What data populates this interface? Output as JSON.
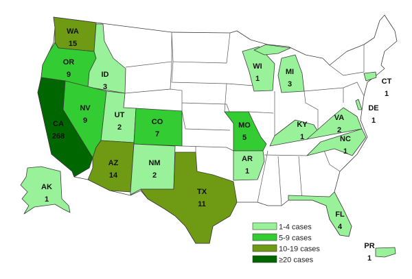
{
  "map": {
    "type": "choropleth",
    "region": "United States",
    "colors": {
      "none": "#ffffff",
      "1-4": "#99f299",
      "5-9": "#33cc33",
      "10-19": "#6f9a14",
      "20+": "#006600"
    },
    "states": [
      {
        "abbr": "WA",
        "cases": "15",
        "bin": "10-19"
      },
      {
        "abbr": "OR",
        "cases": "9",
        "bin": "5-9"
      },
      {
        "abbr": "ID",
        "cases": "3",
        "bin": "1-4"
      },
      {
        "abbr": "CA",
        "cases": "268",
        "bin": "20+"
      },
      {
        "abbr": "NV",
        "cases": "9",
        "bin": "5-9"
      },
      {
        "abbr": "UT",
        "cases": "2",
        "bin": "1-4"
      },
      {
        "abbr": "CO",
        "cases": "7",
        "bin": "5-9"
      },
      {
        "abbr": "AZ",
        "cases": "14",
        "bin": "10-19"
      },
      {
        "abbr": "NM",
        "cases": "2",
        "bin": "1-4"
      },
      {
        "abbr": "TX",
        "cases": "11",
        "bin": "10-19"
      },
      {
        "abbr": "AK",
        "cases": "1",
        "bin": "1-4"
      },
      {
        "abbr": "MO",
        "cases": "5",
        "bin": "5-9"
      },
      {
        "abbr": "AR",
        "cases": "1",
        "bin": "1-4"
      },
      {
        "abbr": "WI",
        "cases": "1",
        "bin": "1-4"
      },
      {
        "abbr": "MI",
        "cases": "3",
        "bin": "1-4"
      },
      {
        "abbr": "KY",
        "cases": "1",
        "bin": "1-4"
      },
      {
        "abbr": "VA",
        "cases": "2",
        "bin": "1-4"
      },
      {
        "abbr": "NC",
        "cases": "1",
        "bin": "1-4"
      },
      {
        "abbr": "FL",
        "cases": "4",
        "bin": "1-4"
      },
      {
        "abbr": "CT",
        "cases": "1",
        "bin": "1-4"
      },
      {
        "abbr": "DE",
        "cases": "1",
        "bin": "1-4"
      },
      {
        "abbr": "PR",
        "cases": "1",
        "bin": "1-4"
      }
    ],
    "legend": [
      {
        "bin": "1-4",
        "label": "1-4 cases"
      },
      {
        "bin": "5-9",
        "label": "5-9 cases"
      },
      {
        "bin": "10-19",
        "label": "10-19 cases"
      },
      {
        "bin": "20+",
        "label": "≥20 cases"
      }
    ],
    "legend_placement": "bottom-center"
  }
}
